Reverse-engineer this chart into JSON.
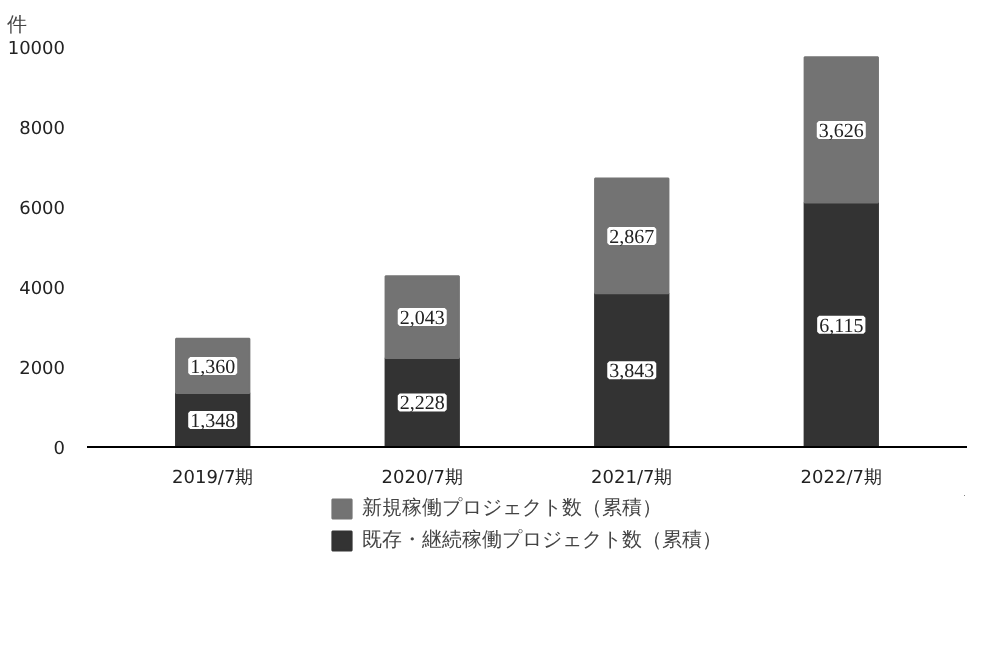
{
  "chart_data": {
    "type": "bar",
    "stacked": true,
    "ylabel": "件",
    "categories": [
      "2019/7期",
      "2020/7期",
      "2021/7期",
      "2022/7期"
    ],
    "series": [
      {
        "name": "既存・継続稼働プロジェクト数（累積）",
        "color": "#333333",
        "values": [
          1348,
          2228,
          3843,
          6115
        ],
        "value_labels": [
          "1,348",
          "2,228",
          "3,843",
          "6,115"
        ]
      },
      {
        "name": "新規稼働プロジェクト数（累積）",
        "color": "#737373",
        "values": [
          1360,
          2043,
          2867,
          3626
        ],
        "value_labels": [
          "1,360",
          "2,043",
          "2,867",
          "3,626"
        ]
      }
    ],
    "ylim": [
      0,
      10000
    ],
    "yticks": [
      0,
      2000,
      4000,
      6000,
      8000,
      10000
    ],
    "legend": "bottom",
    "grid": false
  }
}
